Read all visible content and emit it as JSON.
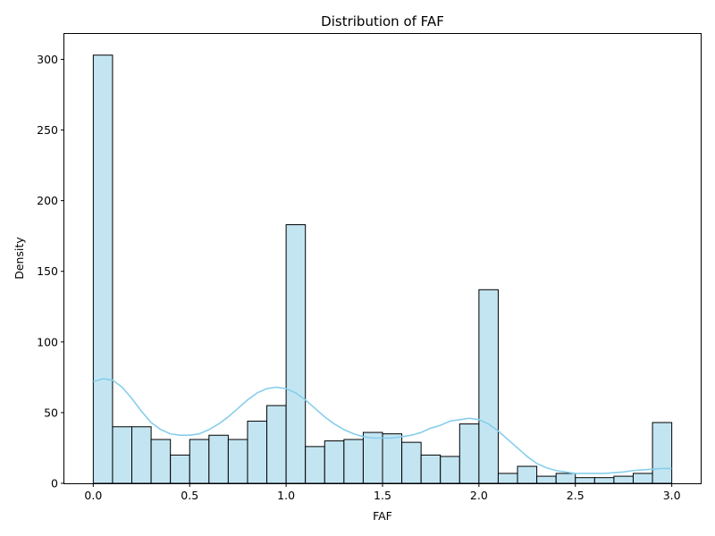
{
  "chart_data": {
    "type": "bar",
    "title": "Distribution of FAF",
    "xlabel": "FAF",
    "ylabel": "Density",
    "xlim": [
      -0.15,
      3.15
    ],
    "ylim": [
      0,
      318
    ],
    "xticks": [
      0.0,
      0.5,
      1.0,
      1.5,
      2.0,
      2.5,
      3.0
    ],
    "xtick_labels": [
      "0.0",
      "0.5",
      "1.0",
      "1.5",
      "2.0",
      "2.5",
      "3.0"
    ],
    "yticks": [
      0,
      50,
      100,
      150,
      200,
      250,
      300
    ],
    "ytick_labels": [
      "0",
      "50",
      "100",
      "150",
      "200",
      "250",
      "300"
    ],
    "grid": false,
    "bin_width": 0.1,
    "bin_start": 0.0,
    "values": [
      303,
      40,
      40,
      31,
      20,
      31,
      34,
      31,
      44,
      55,
      183,
      26,
      30,
      31,
      36,
      35,
      29,
      20,
      19,
      42,
      137,
      7,
      12,
      5,
      7,
      4,
      4,
      5,
      7,
      43
    ],
    "bar_color": "#c3e5f2",
    "bar_edge_color": "#000000",
    "kde": {
      "color": "#87ceeb",
      "x": [
        0.0,
        0.05,
        0.1,
        0.15,
        0.2,
        0.25,
        0.3,
        0.35,
        0.4,
        0.45,
        0.5,
        0.55,
        0.6,
        0.65,
        0.7,
        0.75,
        0.8,
        0.85,
        0.9,
        0.95,
        1.0,
        1.05,
        1.1,
        1.15,
        1.2,
        1.25,
        1.3,
        1.35,
        1.4,
        1.45,
        1.5,
        1.55,
        1.6,
        1.65,
        1.7,
        1.75,
        1.8,
        1.85,
        1.9,
        1.95,
        2.0,
        2.05,
        2.1,
        2.15,
        2.2,
        2.25,
        2.3,
        2.35,
        2.4,
        2.45,
        2.5,
        2.55,
        2.6,
        2.65,
        2.7,
        2.75,
        2.8,
        2.85,
        2.9,
        2.95,
        3.0
      ],
      "y": [
        72,
        74,
        73,
        68,
        60,
        51,
        43,
        38,
        35,
        34,
        34,
        35,
        38,
        42,
        47,
        53,
        59,
        64,
        67,
        68,
        67,
        64,
        59,
        53,
        47,
        42,
        38,
        35,
        33,
        32,
        32,
        32,
        33,
        34,
        36,
        39,
        41,
        44,
        45,
        46,
        45,
        42,
        37,
        31,
        25,
        19,
        14,
        11,
        9,
        8,
        7,
        7,
        7,
        7,
        7.5,
        8,
        9,
        9.5,
        10,
        10.5,
        10.5
      ]
    }
  }
}
